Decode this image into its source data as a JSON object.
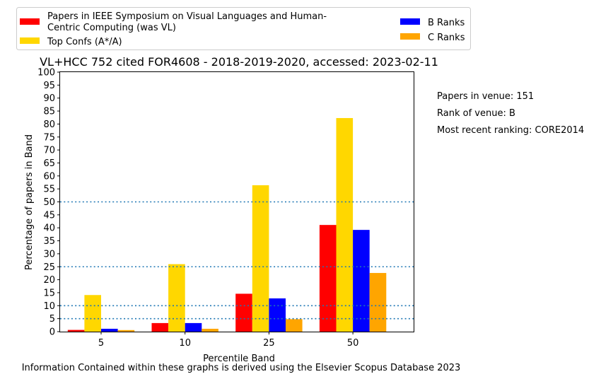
{
  "chart_data": {
    "type": "bar",
    "title": "VL+HCC 752 cited FOR4608 - 2018-2019-2020, accessed: 2023-02-11",
    "xlabel": "Percentile Band",
    "ylabel": "Percentage of papers in Band",
    "categories": [
      "5",
      "10",
      "25",
      "50"
    ],
    "ylim": [
      0,
      100
    ],
    "yticks": [
      0,
      5,
      10,
      15,
      20,
      25,
      30,
      35,
      40,
      45,
      50,
      55,
      60,
      65,
      70,
      75,
      80,
      85,
      90,
      95,
      100
    ],
    "reference_lines": [
      5,
      10,
      25,
      50
    ],
    "grid": false,
    "legend_placement": "top, above chart",
    "series": [
      {
        "name": "Papers in IEEE Symposium on Visual Languages and Human-Centric Computing (was VL)",
        "color": "#ff0000",
        "values": [
          0.66,
          3.3,
          14.6,
          41.1
        ]
      },
      {
        "name": "Top Confs (A*/A)",
        "color": "#ffd700",
        "values": [
          14.1,
          26.0,
          56.4,
          82.3
        ]
      },
      {
        "name": "B Ranks",
        "color": "#0000ff",
        "values": [
          1.1,
          3.3,
          12.8,
          39.2
        ]
      },
      {
        "name": "C Ranks",
        "color": "#ffa500",
        "values": [
          0.6,
          1.1,
          4.8,
          22.6
        ]
      }
    ],
    "annotations": [
      "Papers in venue: 151",
      "Rank of venue: B",
      "Most recent ranking: CORE2014"
    ],
    "footer": "Information Contained within these graphs is derived using the Elsevier Scopus Database 2023"
  }
}
